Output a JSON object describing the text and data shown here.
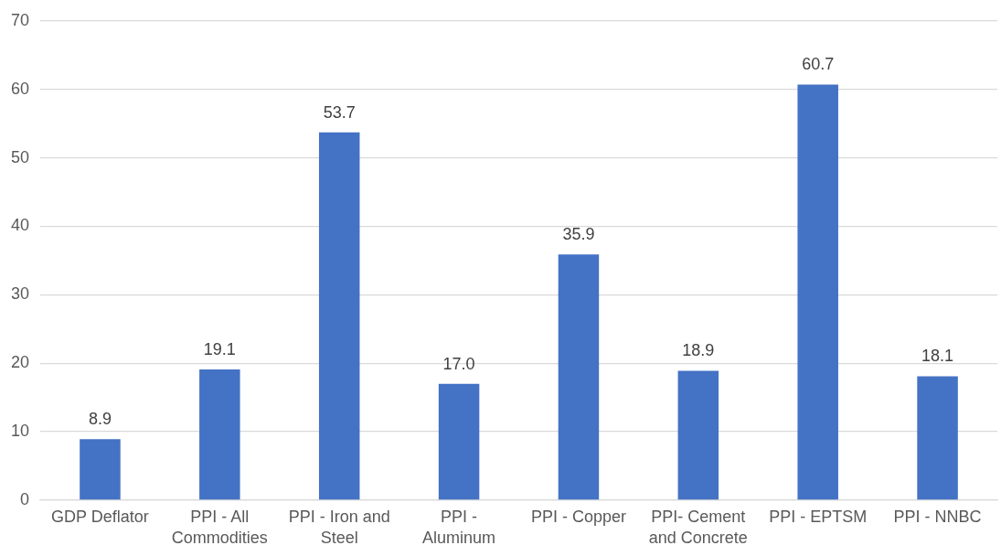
{
  "chart_data": {
    "type": "bar",
    "categories": [
      "GDP Deflator",
      "PPI - All Commodities",
      "PPI - Iron and Steel",
      "PPI - Aluminum",
      "PPI - Copper",
      "PPI- Cement and Concrete",
      "PPI - EPTSM",
      "PPI - NNBC"
    ],
    "values": [
      8.9,
      19.1,
      53.7,
      17.0,
      35.9,
      18.9,
      60.7,
      18.1
    ],
    "value_labels": [
      "8.9",
      "19.1",
      "53.7",
      "17.0",
      "35.9",
      "18.9",
      "60.7",
      "18.1"
    ],
    "color": "#4472c4",
    "ylim": [
      0,
      70
    ],
    "yticks": [
      0,
      10,
      20,
      30,
      40,
      50,
      60,
      70
    ],
    "grid": "y",
    "legend": false
  }
}
